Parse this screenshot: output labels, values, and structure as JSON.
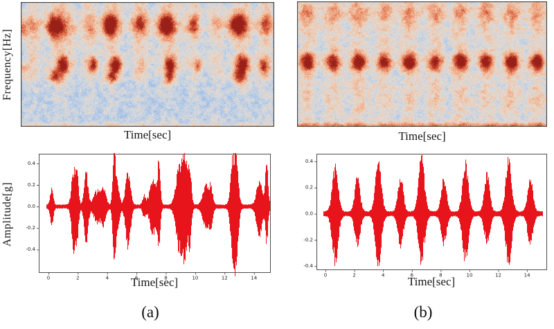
{
  "figure": {
    "captions": {
      "a": "(a)",
      "b": "(b)"
    },
    "labels": {
      "frequency": "Frequency[Hz]",
      "amplitude": "Amplitude[g]",
      "time": "Time[sec]"
    }
  },
  "colors": {
    "waveform_red": "#e8141b",
    "axis": "#3a3a3a",
    "tick_text": "#1a1a1a",
    "heat_cold_blue": "#a6c2e8",
    "heat_warm_salmon": "#f2c6a8",
    "heat_hot_red": "#be3c28"
  },
  "chart_data": [
    {
      "type": "heatmap",
      "subtype": "spectrogram",
      "xlabel": "Time[sec]",
      "ylabel": "Frequency[Hz]",
      "colormap": "coolwarm (blue-white-orange-red)",
      "tick_labels": "none shown",
      "description": "Spectrogram (a): irregular vertical energy bands on blue background, red hotspots at an upper and a middle frequency row",
      "seed": 7,
      "bands": [
        {
          "c": 0.045,
          "w": 0.025,
          "s": 0.6
        },
        {
          "c": 0.16,
          "w": 0.04,
          "s": 0.8
        },
        {
          "c": 0.27,
          "w": 0.022,
          "s": 0.65
        },
        {
          "c": 0.36,
          "w": 0.028,
          "s": 0.8
        },
        {
          "c": 0.47,
          "w": 0.028,
          "s": 0.7
        },
        {
          "c": 0.585,
          "w": 0.03,
          "s": 0.8
        },
        {
          "c": 0.68,
          "w": 0.022,
          "s": 0.65
        },
        {
          "c": 0.77,
          "w": 0.025,
          "s": 0.55
        },
        {
          "c": 0.868,
          "w": 0.03,
          "s": 0.8
        },
        {
          "c": 0.965,
          "w": 0.025,
          "s": 0.7
        }
      ],
      "profile": [
        [
          0,
          0.95
        ],
        [
          0.25,
          1.0
        ],
        [
          0.45,
          0.8
        ],
        [
          0.58,
          0.5
        ],
        [
          0.75,
          0.32
        ],
        [
          0.92,
          0.3
        ],
        [
          1,
          0.4
        ]
      ],
      "rows": [
        {
          "y": 0.19,
          "h": 0.06,
          "s": 0.3
        },
        {
          "y": 0.52,
          "h": 0.06,
          "s": 0.25
        },
        {
          "y": 0.6,
          "h": 0.04,
          "s": 0.15
        }
      ],
      "global_rows": [
        {
          "y": 0.99,
          "h": 0.015,
          "s": 0.12
        }
      ],
      "hotspots": [
        {
          "x": 0.005,
          "y": 0.2,
          "rx": 0.012,
          "ry": 0.06,
          "s": 0.55
        },
        {
          "x": 0.005,
          "y": 0.54,
          "rx": 0.012,
          "ry": 0.05,
          "s": 0.5
        },
        {
          "x": 0.13,
          "y": 0.19,
          "rx": 0.022,
          "ry": 0.065,
          "s": 1.0
        },
        {
          "x": 0.35,
          "y": 0.18,
          "rx": 0.02,
          "ry": 0.06,
          "s": 0.9
        },
        {
          "x": 0.565,
          "y": 0.18,
          "rx": 0.022,
          "ry": 0.06,
          "s": 1.0
        },
        {
          "x": 0.85,
          "y": 0.18,
          "rx": 0.022,
          "ry": 0.06,
          "s": 1.0
        },
        {
          "x": 0.47,
          "y": 0.16,
          "rx": 0.018,
          "ry": 0.055,
          "s": 0.5
        },
        {
          "x": 0.68,
          "y": 0.17,
          "rx": 0.015,
          "ry": 0.05,
          "s": 0.5
        },
        {
          "x": 0.965,
          "y": 0.16,
          "rx": 0.015,
          "ry": 0.05,
          "s": 0.45
        },
        {
          "x": 0.165,
          "y": 0.5,
          "rx": 0.015,
          "ry": 0.045,
          "s": 0.95
        },
        {
          "x": 0.285,
          "y": 0.5,
          "rx": 0.013,
          "ry": 0.042,
          "s": 0.85
        },
        {
          "x": 0.375,
          "y": 0.5,
          "rx": 0.015,
          "ry": 0.045,
          "s": 1.0
        },
        {
          "x": 0.59,
          "y": 0.5,
          "rx": 0.015,
          "ry": 0.045,
          "s": 0.9
        },
        {
          "x": 0.7,
          "y": 0.5,
          "rx": 0.012,
          "ry": 0.04,
          "s": 0.55
        },
        {
          "x": 0.875,
          "y": 0.5,
          "rx": 0.017,
          "ry": 0.048,
          "s": 1.0
        },
        {
          "x": 0.957,
          "y": 0.51,
          "rx": 0.014,
          "ry": 0.045,
          "s": 0.8
        },
        {
          "x": 0.135,
          "y": 0.6,
          "rx": 0.017,
          "ry": 0.038,
          "s": 0.8
        },
        {
          "x": 0.36,
          "y": 0.6,
          "rx": 0.015,
          "ry": 0.035,
          "s": 0.7
        },
        {
          "x": 0.585,
          "y": 0.6,
          "rx": 0.015,
          "ry": 0.035,
          "s": 0.7
        },
        {
          "x": 0.862,
          "y": 0.6,
          "rx": 0.017,
          "ry": 0.038,
          "s": 0.8
        }
      ]
    },
    {
      "type": "heatmap",
      "subtype": "spectrogram",
      "xlabel": "Time[sec]",
      "ylabel": "",
      "colormap": "coolwarm (blue-white-orange-red)",
      "tick_labels": "none shown",
      "description": "Spectrogram (b): 10 regular evenly spaced vertical energy bands, red hotspot on each band at mid frequency row",
      "seed": 13,
      "bands": [
        {
          "c": 0.041,
          "w": 0.03,
          "s": 0.8
        },
        {
          "c": 0.143,
          "w": 0.03,
          "s": 0.75
        },
        {
          "c": 0.245,
          "w": 0.03,
          "s": 0.8
        },
        {
          "c": 0.347,
          "w": 0.03,
          "s": 0.75
        },
        {
          "c": 0.449,
          "w": 0.03,
          "s": 0.8
        },
        {
          "c": 0.551,
          "w": 0.03,
          "s": 0.75
        },
        {
          "c": 0.653,
          "w": 0.03,
          "s": 0.8
        },
        {
          "c": 0.755,
          "w": 0.03,
          "s": 0.75
        },
        {
          "c": 0.857,
          "w": 0.03,
          "s": 0.8
        },
        {
          "c": 0.959,
          "w": 0.03,
          "s": 0.78
        }
      ],
      "profile": [
        [
          0,
          0.9
        ],
        [
          0.25,
          0.95
        ],
        [
          0.42,
          0.7
        ],
        [
          0.6,
          0.8
        ],
        [
          0.85,
          0.75
        ],
        [
          0.95,
          0.6
        ],
        [
          1,
          0.75
        ]
      ],
      "rows": [
        {
          "y": 0.09,
          "h": 0.06,
          "s": 0.25
        },
        {
          "y": 0.48,
          "h": 0.05,
          "s": 0.3
        },
        {
          "y": 0.8,
          "h": 0.1,
          "s": 0.1
        }
      ],
      "global_rows": [
        {
          "y": 0.99,
          "h": 0.018,
          "s": 0.28
        }
      ],
      "hotspots": [
        {
          "x": 0.041,
          "y": 0.48,
          "rx": 0.018,
          "ry": 0.05,
          "s": 0.95
        },
        {
          "x": 0.143,
          "y": 0.48,
          "rx": 0.018,
          "ry": 0.05,
          "s": 0.75
        },
        {
          "x": 0.245,
          "y": 0.48,
          "rx": 0.018,
          "ry": 0.05,
          "s": 1.0
        },
        {
          "x": 0.347,
          "y": 0.48,
          "rx": 0.018,
          "ry": 0.05,
          "s": 0.8
        },
        {
          "x": 0.449,
          "y": 0.48,
          "rx": 0.018,
          "ry": 0.05,
          "s": 1.0
        },
        {
          "x": 0.551,
          "y": 0.48,
          "rx": 0.018,
          "ry": 0.05,
          "s": 0.75
        },
        {
          "x": 0.653,
          "y": 0.48,
          "rx": 0.018,
          "ry": 0.05,
          "s": 0.95
        },
        {
          "x": 0.755,
          "y": 0.48,
          "rx": 0.018,
          "ry": 0.05,
          "s": 0.8
        },
        {
          "x": 0.857,
          "y": 0.48,
          "rx": 0.018,
          "ry": 0.05,
          "s": 1.0
        },
        {
          "x": 0.959,
          "y": 0.48,
          "rx": 0.018,
          "ry": 0.05,
          "s": 0.85
        }
      ]
    },
    {
      "type": "line",
      "subtype": "waveform",
      "xlabel": "Time[sec]",
      "ylabel": "Amplitude[g]",
      "color": "#e8141b",
      "seed": 21,
      "xlim": [
        -0.66,
        15.1
      ],
      "ylim": [
        -0.61,
        0.49
      ],
      "xticks": [
        0,
        2,
        4,
        6,
        8,
        10,
        12,
        14
      ],
      "xtick_labels": [
        "0",
        "2",
        "4",
        "6",
        "8",
        "10",
        "12",
        "14"
      ],
      "yticks": [
        0.4,
        0.2,
        0.0,
        -0.2,
        -0.4
      ],
      "ytick_labels": [
        "0.4",
        "0.2",
        "0.0",
        "-0.2",
        "-0.4"
      ],
      "time_range_sec": [
        0,
        15
      ],
      "baseline_amplitude": 0.02,
      "bursts": [
        {
          "t": 0.2,
          "w": 0.1,
          "a": 0.17,
          "n": 1.0
        },
        {
          "t": 1.7,
          "w": 0.14,
          "a": 0.36,
          "n": 1.2
        },
        {
          "t": 1.95,
          "w": 0.09,
          "a": 0.25,
          "n": 1.0
        },
        {
          "t": 2.55,
          "w": 0.13,
          "a": 0.33,
          "n": 1.1
        },
        {
          "t": 3.3,
          "w": 0.22,
          "a": 0.15,
          "n": 1.0
        },
        {
          "t": 3.75,
          "w": 0.15,
          "a": 0.16,
          "n": 1.0
        },
        {
          "t": 4.45,
          "w": 0.09,
          "a": 0.45,
          "n": 1.0
        },
        {
          "t": 4.65,
          "w": 0.15,
          "a": 0.22,
          "n": 1.0
        },
        {
          "t": 5.4,
          "w": 0.16,
          "a": 0.34,
          "n": 1.2
        },
        {
          "t": 6.5,
          "w": 0.1,
          "a": 0.09,
          "n": 1.0
        },
        {
          "t": 7.1,
          "w": 0.22,
          "a": 0.24,
          "n": 1.1
        },
        {
          "t": 7.5,
          "w": 0.09,
          "a": 0.42,
          "n": 0.85
        },
        {
          "t": 8.9,
          "w": 0.22,
          "a": 0.38,
          "n": 1.1
        },
        {
          "t": 9.3,
          "w": 0.16,
          "a": 0.42,
          "n": 1.05
        },
        {
          "t": 9.62,
          "w": 0.1,
          "a": 0.33,
          "n": 1.0
        },
        {
          "t": 10.7,
          "w": 0.2,
          "a": 0.19,
          "n": 1.0
        },
        {
          "t": 11.05,
          "w": 0.12,
          "a": 0.16,
          "n": 1.0
        },
        {
          "t": 12.55,
          "w": 0.15,
          "a": 0.46,
          "n": 1.1
        },
        {
          "t": 12.8,
          "w": 0.13,
          "a": 0.38,
          "n": 1.15
        },
        {
          "t": 14.35,
          "w": 0.18,
          "a": 0.26,
          "n": 1.1
        },
        {
          "t": 14.85,
          "w": 0.09,
          "a": 0.44,
          "n": 0.78
        }
      ]
    },
    {
      "type": "line",
      "subtype": "waveform",
      "xlabel": "Time[sec]",
      "ylabel": "",
      "color": "#e8141b",
      "seed": 42,
      "xlim": [
        -0.625,
        15.34
      ],
      "ylim": [
        -0.425,
        0.458
      ],
      "xticks": [
        0,
        2,
        4,
        6,
        8,
        10,
        12,
        14
      ],
      "xtick_labels": [
        "0",
        "2",
        "4",
        "6",
        "8",
        "10",
        "12",
        "14"
      ],
      "yticks": [
        0.4,
        0.2,
        0.0,
        -0.2,
        -0.4
      ],
      "ytick_labels": [
        "0.4",
        "0.2",
        "0.0",
        "-0.2",
        "-0.4"
      ],
      "time_range_sec": [
        0,
        15
      ],
      "baseline_amplitude": 0.02,
      "bursts": [
        {
          "t": 0.65,
          "w": 0.2,
          "a": 0.37,
          "n": 1.05
        },
        {
          "t": 2.2,
          "w": 0.18,
          "a": 0.28,
          "n": 0.9
        },
        {
          "t": 3.65,
          "w": 0.2,
          "a": 0.43,
          "n": 0.93
        },
        {
          "t": 5.2,
          "w": 0.18,
          "a": 0.29,
          "n": 0.85
        },
        {
          "t": 6.65,
          "w": 0.2,
          "a": 0.44,
          "n": 0.92
        },
        {
          "t": 8.2,
          "w": 0.18,
          "a": 0.27,
          "n": 0.9
        },
        {
          "t": 9.7,
          "w": 0.2,
          "a": 0.4,
          "n": 0.95
        },
        {
          "t": 11.2,
          "w": 0.18,
          "a": 0.31,
          "n": 0.8
        },
        {
          "t": 12.7,
          "w": 0.2,
          "a": 0.43,
          "n": 0.93
        },
        {
          "t": 14.2,
          "w": 0.18,
          "a": 0.28,
          "n": 0.88
        }
      ]
    }
  ]
}
